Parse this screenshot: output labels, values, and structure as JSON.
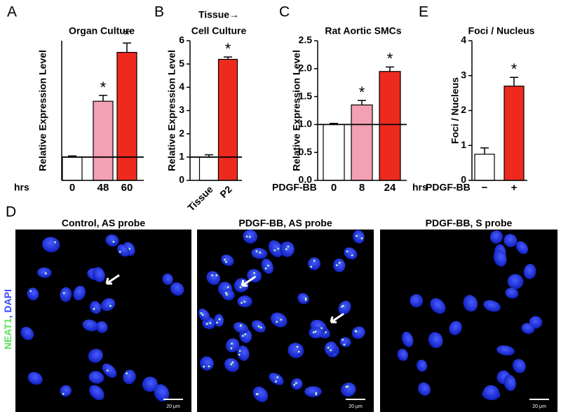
{
  "chart_data": [
    {
      "type": "bar",
      "panel_label": "A",
      "title": [
        "Organ Culture"
      ],
      "y_label": "Relative Expression Level",
      "x_label": "hrs",
      "categories": [
        "0",
        "48",
        "60"
      ],
      "values": [
        1,
        3.4,
        5.5
      ],
      "errors": [
        0.05,
        0.25,
        0.4
      ],
      "stars": [
        null,
        "*",
        "*"
      ],
      "colors": [
        "#ffffff",
        "#f4a0b4",
        "#ee2a1e"
      ],
      "ylim": [
        0,
        6
      ],
      "reference_line": 1
    },
    {
      "type": "bar",
      "panel_label": "B",
      "title": [
        "Tissue→",
        "Cell Culture"
      ],
      "y_label": "Relative Expression Level",
      "categories": [
        "Tissue",
        "P2"
      ],
      "values": [
        1,
        5.2
      ],
      "errors": [
        0.1,
        0.1
      ],
      "stars": [
        null,
        "*"
      ],
      "colors": [
        "#ffffff",
        "#ee2a1e"
      ],
      "ylim": [
        0,
        6
      ],
      "yticks": [
        0,
        1,
        2,
        3,
        4,
        5,
        6
      ],
      "reference_line": 1
    },
    {
      "type": "bar",
      "panel_label": "C",
      "title": [
        "Rat Aortic SMCs"
      ],
      "y_label": "Relative Expression Level",
      "x_label": "PDGF-BB",
      "x_unit": "hrs",
      "categories": [
        "0",
        "8",
        "24"
      ],
      "values": [
        1.0,
        1.35,
        1.95
      ],
      "errors": [
        0.02,
        0.08,
        0.08
      ],
      "stars": [
        null,
        "*",
        "*"
      ],
      "colors": [
        "#ffffff",
        "#f4a0b4",
        "#ee2a1e"
      ],
      "ylim": [
        0,
        2.5
      ],
      "yticks": [
        {
          "value": 0,
          "label": "0.0"
        },
        {
          "value": 0.5,
          "label": "0.5"
        },
        {
          "value": 1,
          "label": "1.0"
        },
        {
          "value": 1.5,
          "label": "1.5"
        },
        {
          "value": 2,
          "label": "2.0"
        },
        {
          "value": 2.5,
          "label": "2.5"
        }
      ],
      "reference_line": 1
    },
    {
      "type": "bar",
      "panel_label": "E",
      "title": [
        "Foci / Nucleus"
      ],
      "y_label": "Foci / Nucleus",
      "x_label": "PDGF-BB",
      "categories": [
        "−",
        "+"
      ],
      "values": [
        0.75,
        2.7
      ],
      "errors": [
        0.18,
        0.25
      ],
      "stars": [
        null,
        "*"
      ],
      "colors": [
        "#ffffff",
        "#ee2a1e"
      ],
      "ylim": [
        0,
        4
      ],
      "yticks": [
        0,
        1,
        2,
        3,
        4
      ]
    }
  ],
  "panel_d": {
    "panel_label": "D",
    "stain_labels": [
      "NEAT1",
      ", DAPI"
    ],
    "images": [
      {
        "title": "Control, AS probe",
        "scale_bar": "20 µm"
      },
      {
        "title": "PDGF-BB, AS probe",
        "scale_bar": "20 µm"
      },
      {
        "title": "PDGF-BB, S probe",
        "scale_bar": "20 µm"
      }
    ]
  }
}
